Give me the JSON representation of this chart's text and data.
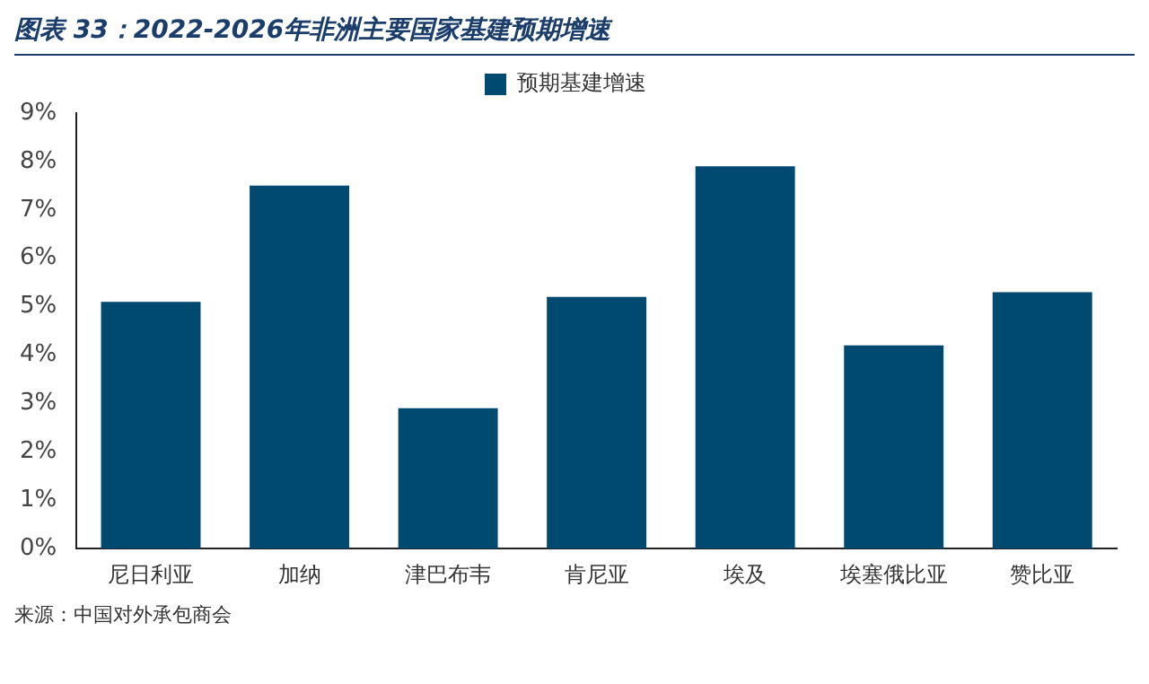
{
  "chart_data": {
    "type": "bar",
    "title": "图表 33：2022-2026年非洲主要国家基建预期增速",
    "categories": [
      "尼日利亚",
      "加纳",
      "津巴布韦",
      "肯尼亚",
      "埃及",
      "埃塞俄比亚",
      "赞比亚"
    ],
    "series": [
      {
        "name": "预期基建增速",
        "color": "#004a72",
        "values": [
          5.1,
          7.5,
          2.9,
          5.2,
          7.9,
          4.2,
          5.3
        ]
      }
    ],
    "ylim": [
      0,
      9
    ],
    "yticks": [
      {
        "value": 0,
        "label": "0%"
      },
      {
        "value": 1,
        "label": "1%"
      },
      {
        "value": 2,
        "label": "2%"
      },
      {
        "value": 3,
        "label": "3%"
      },
      {
        "value": 4,
        "label": "4%"
      },
      {
        "value": 5,
        "label": "5%"
      },
      {
        "value": 6,
        "label": "6%"
      },
      {
        "value": 7,
        "label": "7%"
      },
      {
        "value": 8,
        "label": "8%"
      },
      {
        "value": 9,
        "label": "9%"
      }
    ],
    "grid": false,
    "legend": "top",
    "annotations": [
      "来源：中国对外承包商会"
    ]
  }
}
